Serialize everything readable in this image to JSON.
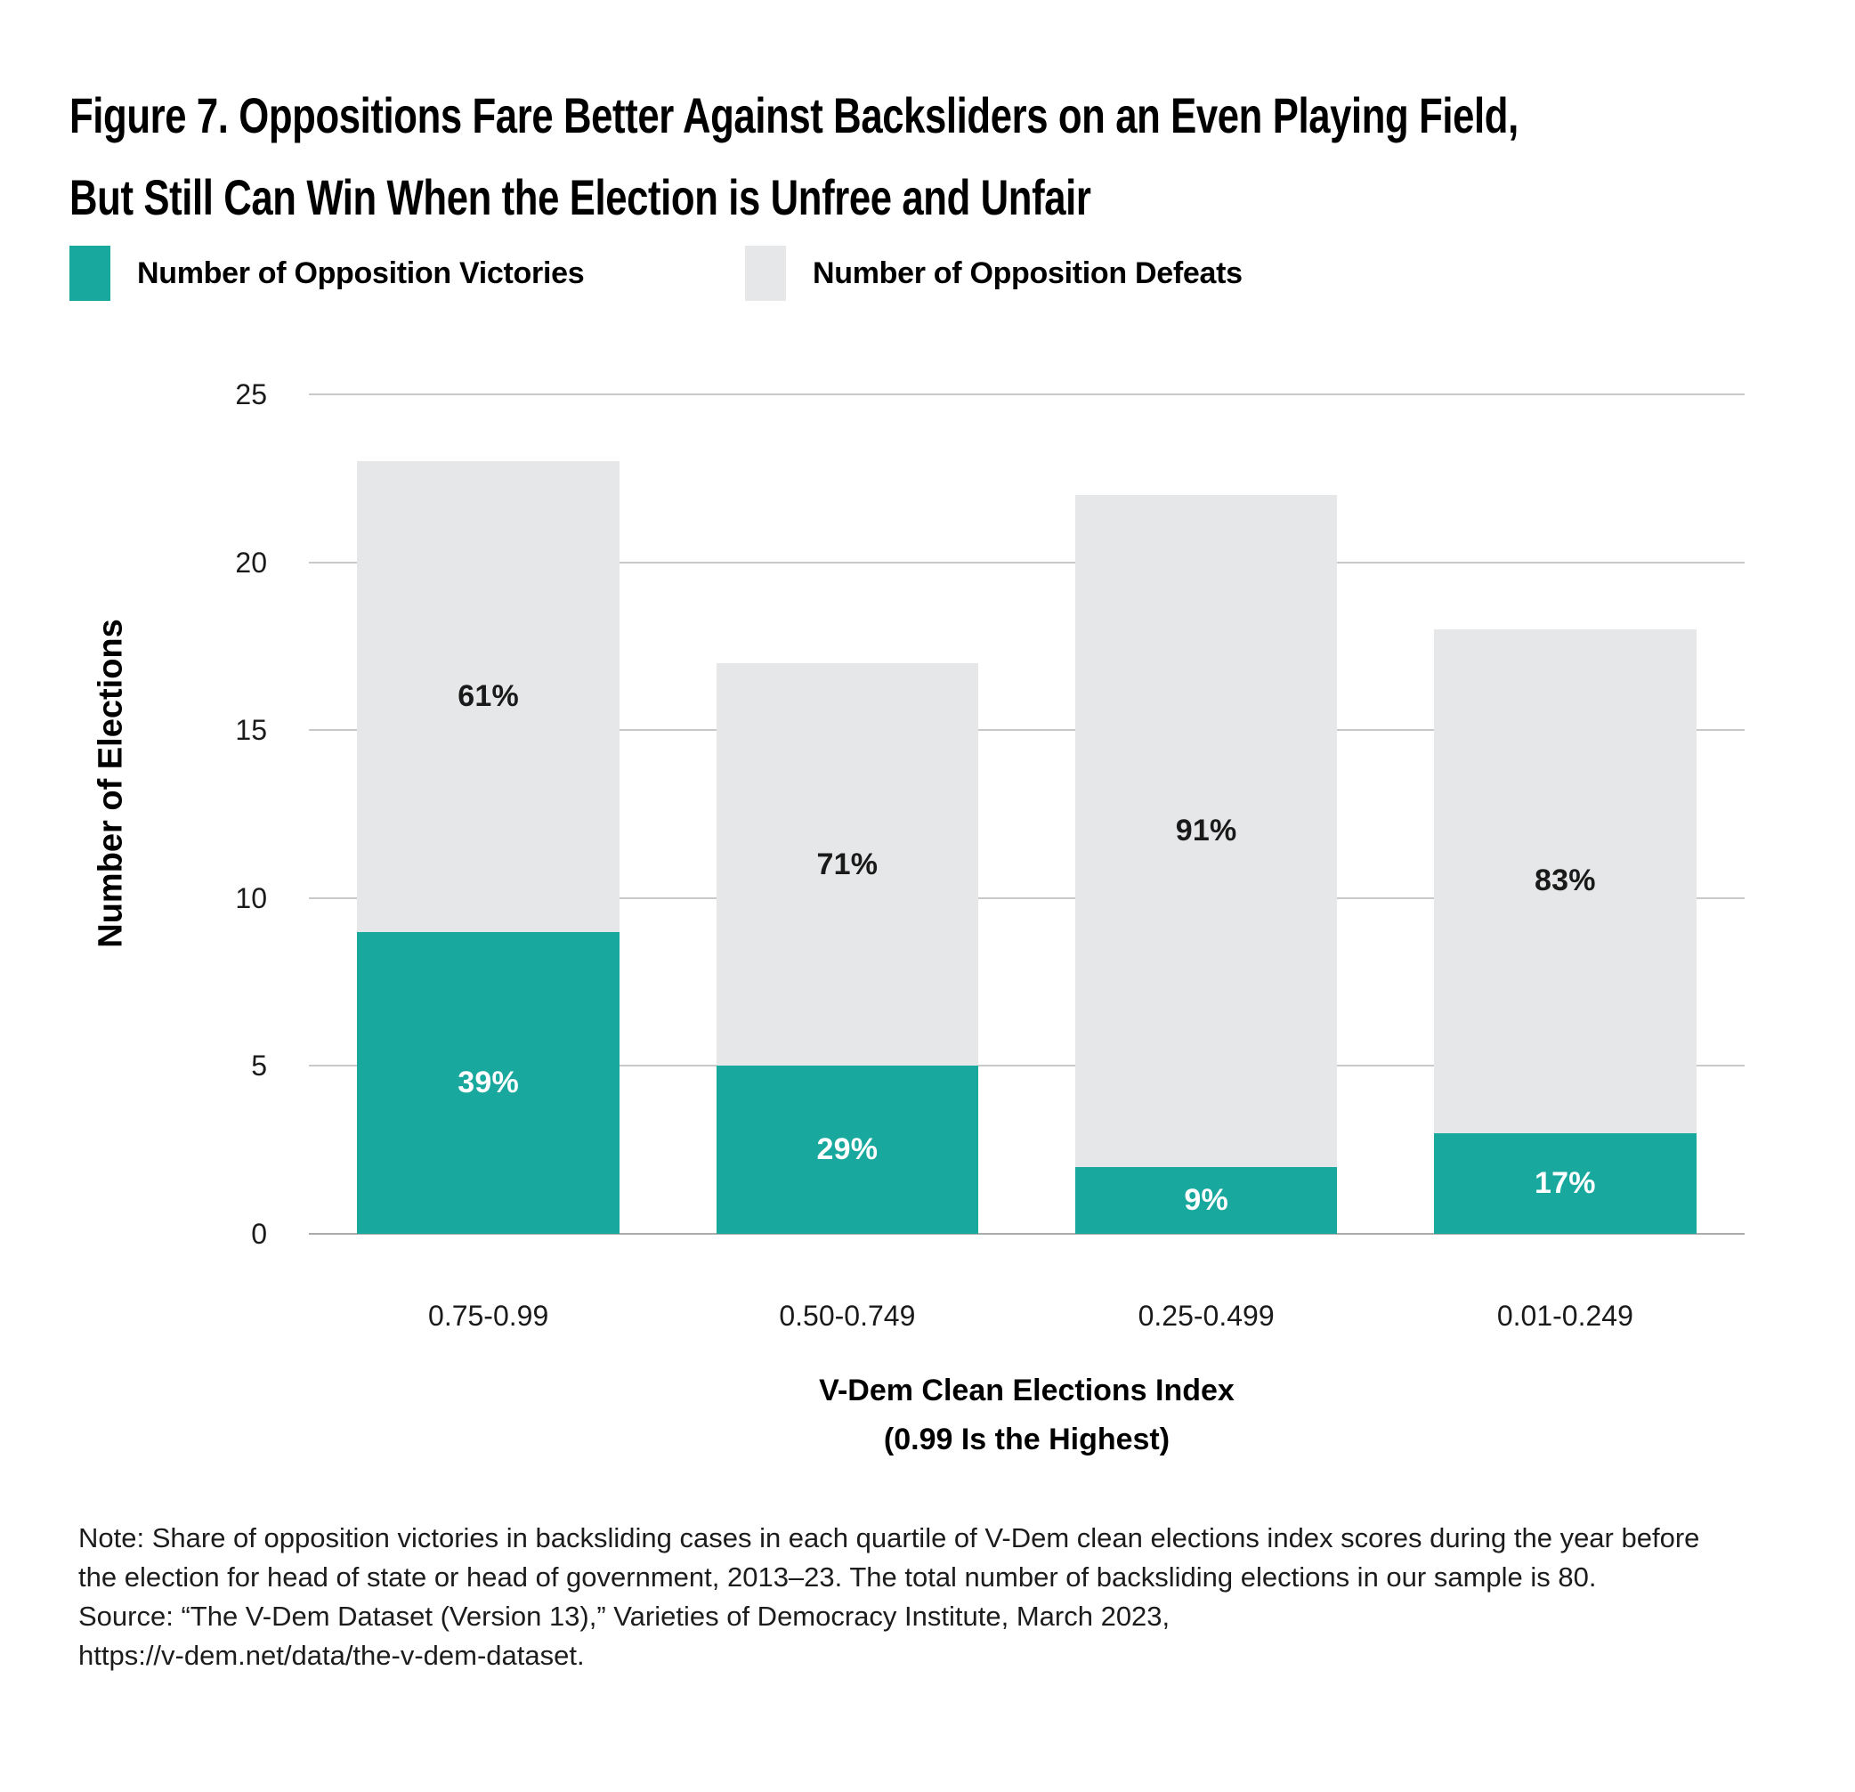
{
  "figure": {
    "title_lines": [
      "Figure 7. Oppositions Fare Better Against Backsliders on an Even Playing Field,",
      "But Still Can Win When the Election is Unfree and Unfair"
    ]
  },
  "legend": {
    "items": [
      {
        "label": "Number of Opposition Victories",
        "color": "#18a89e"
      },
      {
        "label": "Number of Opposition Defeats",
        "color": "#e6e7e8"
      }
    ]
  },
  "chart_data": {
    "type": "bar",
    "stacked": true,
    "categories": [
      "0.75-0.99",
      "0.50-0.749",
      "0.25-0.499",
      "0.01-0.249"
    ],
    "series": [
      {
        "name": "Number of Opposition Victories",
        "values": [
          9,
          5,
          2,
          3
        ],
        "pct_labels": [
          "39%",
          "29%",
          "9%",
          "17%"
        ],
        "color": "#18a89e",
        "label_color": "#ffffff"
      },
      {
        "name": "Number of Opposition Defeats",
        "values": [
          14,
          12,
          20,
          15
        ],
        "pct_labels": [
          "61%",
          "71%",
          "91%",
          "83%"
        ],
        "color": "#e6e7e8",
        "label_color": "#1a1a1a"
      }
    ],
    "stack_totals": [
      23,
      17,
      22,
      18
    ],
    "title": "Figure 7. Oppositions Fare Better Against Backsliders on an Even Playing Field, But Still Can Win When the Election is Unfree and Unfair",
    "xlabel": "V-Dem Clean Elections Index (0.99 Is the Highest)",
    "ylabel": "Number of Elections",
    "ylim": [
      0,
      25
    ],
    "yticks": [
      0,
      5,
      10,
      15,
      20,
      25
    ],
    "grid": true,
    "grid_color": "#c9c9c9",
    "baseline_color": "#ababab",
    "legend_position": "top-left"
  },
  "axis": {
    "y_title": "Number of Elections",
    "x_title_line1": "V-Dem Clean Elections Index",
    "x_title_line2": "(0.99 Is the Highest)"
  },
  "footer": {
    "note": "Note: Share of opposition victories in backsliding cases in each quartile of V-Dem clean elections index scores during the year before the election for head of state or head of government, 2013–23. The total number of backsliding elections in our sample is 80.",
    "source_line1": "Source: “The V-Dem Dataset (Version 13),” Varieties of Democracy Institute, March 2023,",
    "source_line2": "https://v-dem.net/data/the-v-dem-dataset."
  }
}
